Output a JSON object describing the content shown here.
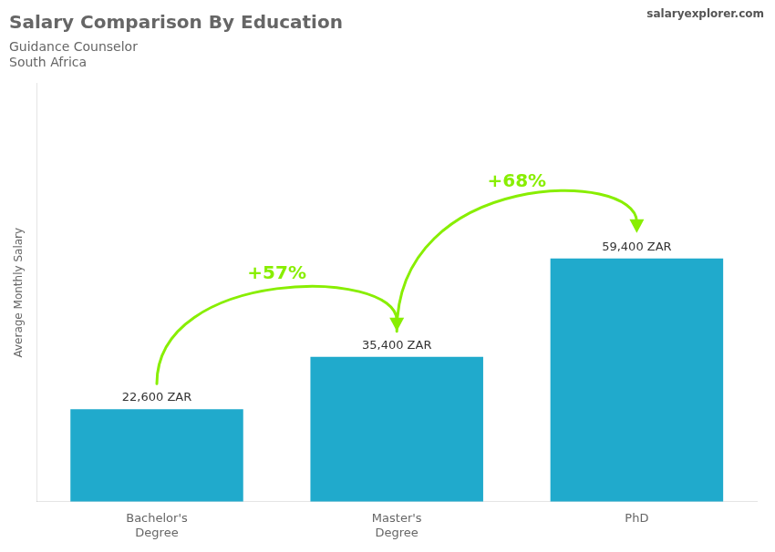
{
  "chart_data": {
    "type": "bar",
    "title": "Salary Comparison By Education",
    "subtitle": [
      "Guidance Counselor",
      "South Africa"
    ],
    "y_label": "Average Monthly Salary",
    "categories": [
      "Bachelor's\nDegree",
      "Master's\nDegree",
      "PhD"
    ],
    "values": [
      22600,
      35400,
      59400
    ],
    "value_labels": [
      "22,600 ZAR",
      "35,400 ZAR",
      "59,400 ZAR"
    ],
    "data_labels": true,
    "color": "#20aacc",
    "ylim": [
      0,
      102168
    ],
    "grid": false,
    "tick_labels": "x",
    "annotations": [
      {
        "text": "+57%",
        "from": "Bachelor's\nDegree",
        "to": "Master's\nDegree",
        "color": "#88ee00"
      },
      {
        "text": "+68%",
        "from": "Master's\nDegree",
        "to": "PhD",
        "color": "#88ee00"
      },
      {
        "text": "salaryexplorer.com"
      }
    ]
  }
}
